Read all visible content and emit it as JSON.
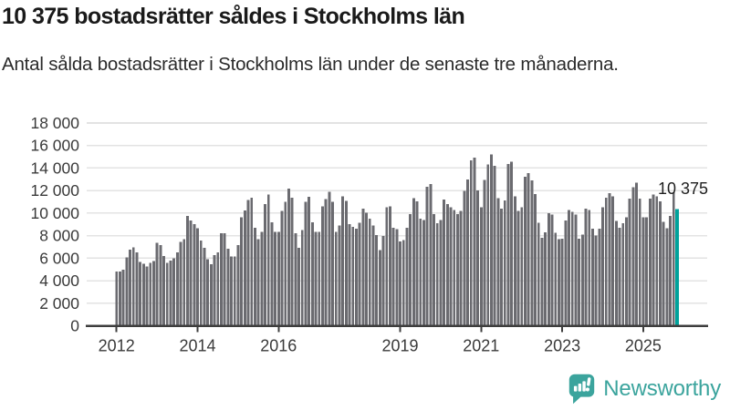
{
  "header": {
    "title": "10 375 bostadsrätter såldes i Stockholms län",
    "subtitle": "Antal sålda bostadsrätter i Stockholms län under de senaste tre månaderna."
  },
  "footer": {
    "brand": "Newsworthy",
    "logo_icon": "newsworthy-speech-bubble-bar-chart-icon"
  },
  "colors": {
    "bar": "#6b6b70",
    "highlight": "#00a29b",
    "grid": "#e3e3e3",
    "axis": "#3d3d3d",
    "brand_teal": "#3ba49d"
  },
  "chart_data": {
    "type": "bar",
    "title": "10 375 bostadsrätter såldes i Stockholms län",
    "subtitle": "Antal sålda bostadsrätter i Stockholms län under de senaste tre månaderna.",
    "xlabel": "",
    "ylabel": "",
    "ylim": [
      0,
      18000
    ],
    "ytick_step": 2000,
    "grid": "horizontal",
    "legend": "none",
    "y_tick_labels": [
      "0",
      "2 000",
      "4 000",
      "6 000",
      "8 000",
      "10 000",
      "12 000",
      "14 000",
      "16 000",
      "18 000"
    ],
    "x_tick_labels": [
      "2012",
      "2014",
      "2016",
      "2019",
      "2021",
      "2023",
      "2025"
    ],
    "x_start_year": 2012,
    "x_start_month": 1,
    "bars_are_monthly_rolling_3m": true,
    "highlight_last_bar": true,
    "highlight_label": "10 375",
    "highlight_value": 10375,
    "values": [
      4800,
      4800,
      4975,
      6050,
      6750,
      6950,
      6500,
      5650,
      5500,
      5250,
      5600,
      5750,
      7350,
      7150,
      6200,
      5580,
      5800,
      5990,
      6530,
      7430,
      7700,
      9740,
      9330,
      9010,
      8650,
      7560,
      6900,
      5900,
      5450,
      6250,
      6500,
      8200,
      8200,
      6850,
      6150,
      6150,
      7180,
      9630,
      10250,
      11150,
      11350,
      8700,
      7670,
      8350,
      10800,
      11670,
      9170,
      8350,
      8350,
      10180,
      11000,
      12160,
      11350,
      8220,
      6910,
      8490,
      11000,
      11430,
      9200,
      8350,
      8350,
      10610,
      11265,
      11890,
      10990,
      8350,
      8900,
      11480,
      11075,
      9030,
      8760,
      8620,
      9160,
      10380,
      10050,
      9510,
      8890,
      8030,
      6730,
      7970,
      10510,
      10590,
      8700,
      8570,
      7490,
      7620,
      8700,
      9920,
      11320,
      11050,
      9510,
      9380,
      12350,
      12570,
      9920,
      9110,
      9380,
      11190,
      10800,
      10530,
      10260,
      9900,
      10180,
      11970,
      13000,
      14690,
      14910,
      12030,
      10510,
      12950,
      14300,
      15190,
      14190,
      11320,
      10400,
      11140,
      14380,
      14570,
      11490,
      10190,
      10510,
      13220,
      13570,
      12890,
      11680,
      9160,
      7810,
      8300,
      9980,
      9870,
      8270,
      7670,
      7730,
      9360,
      10260,
      10120,
      9850,
      7730,
      8080,
      10390,
      10260,
      8630,
      8000,
      8630,
      10530,
      11350,
      11760,
      11480,
      9300,
      8700,
      9100,
      9620,
      11300,
      12290,
      12700,
      11300,
      9620,
      9620,
      11300,
      11660,
      11470,
      11030,
      9210,
      8670,
      9755,
      11850,
      10375
    ]
  }
}
